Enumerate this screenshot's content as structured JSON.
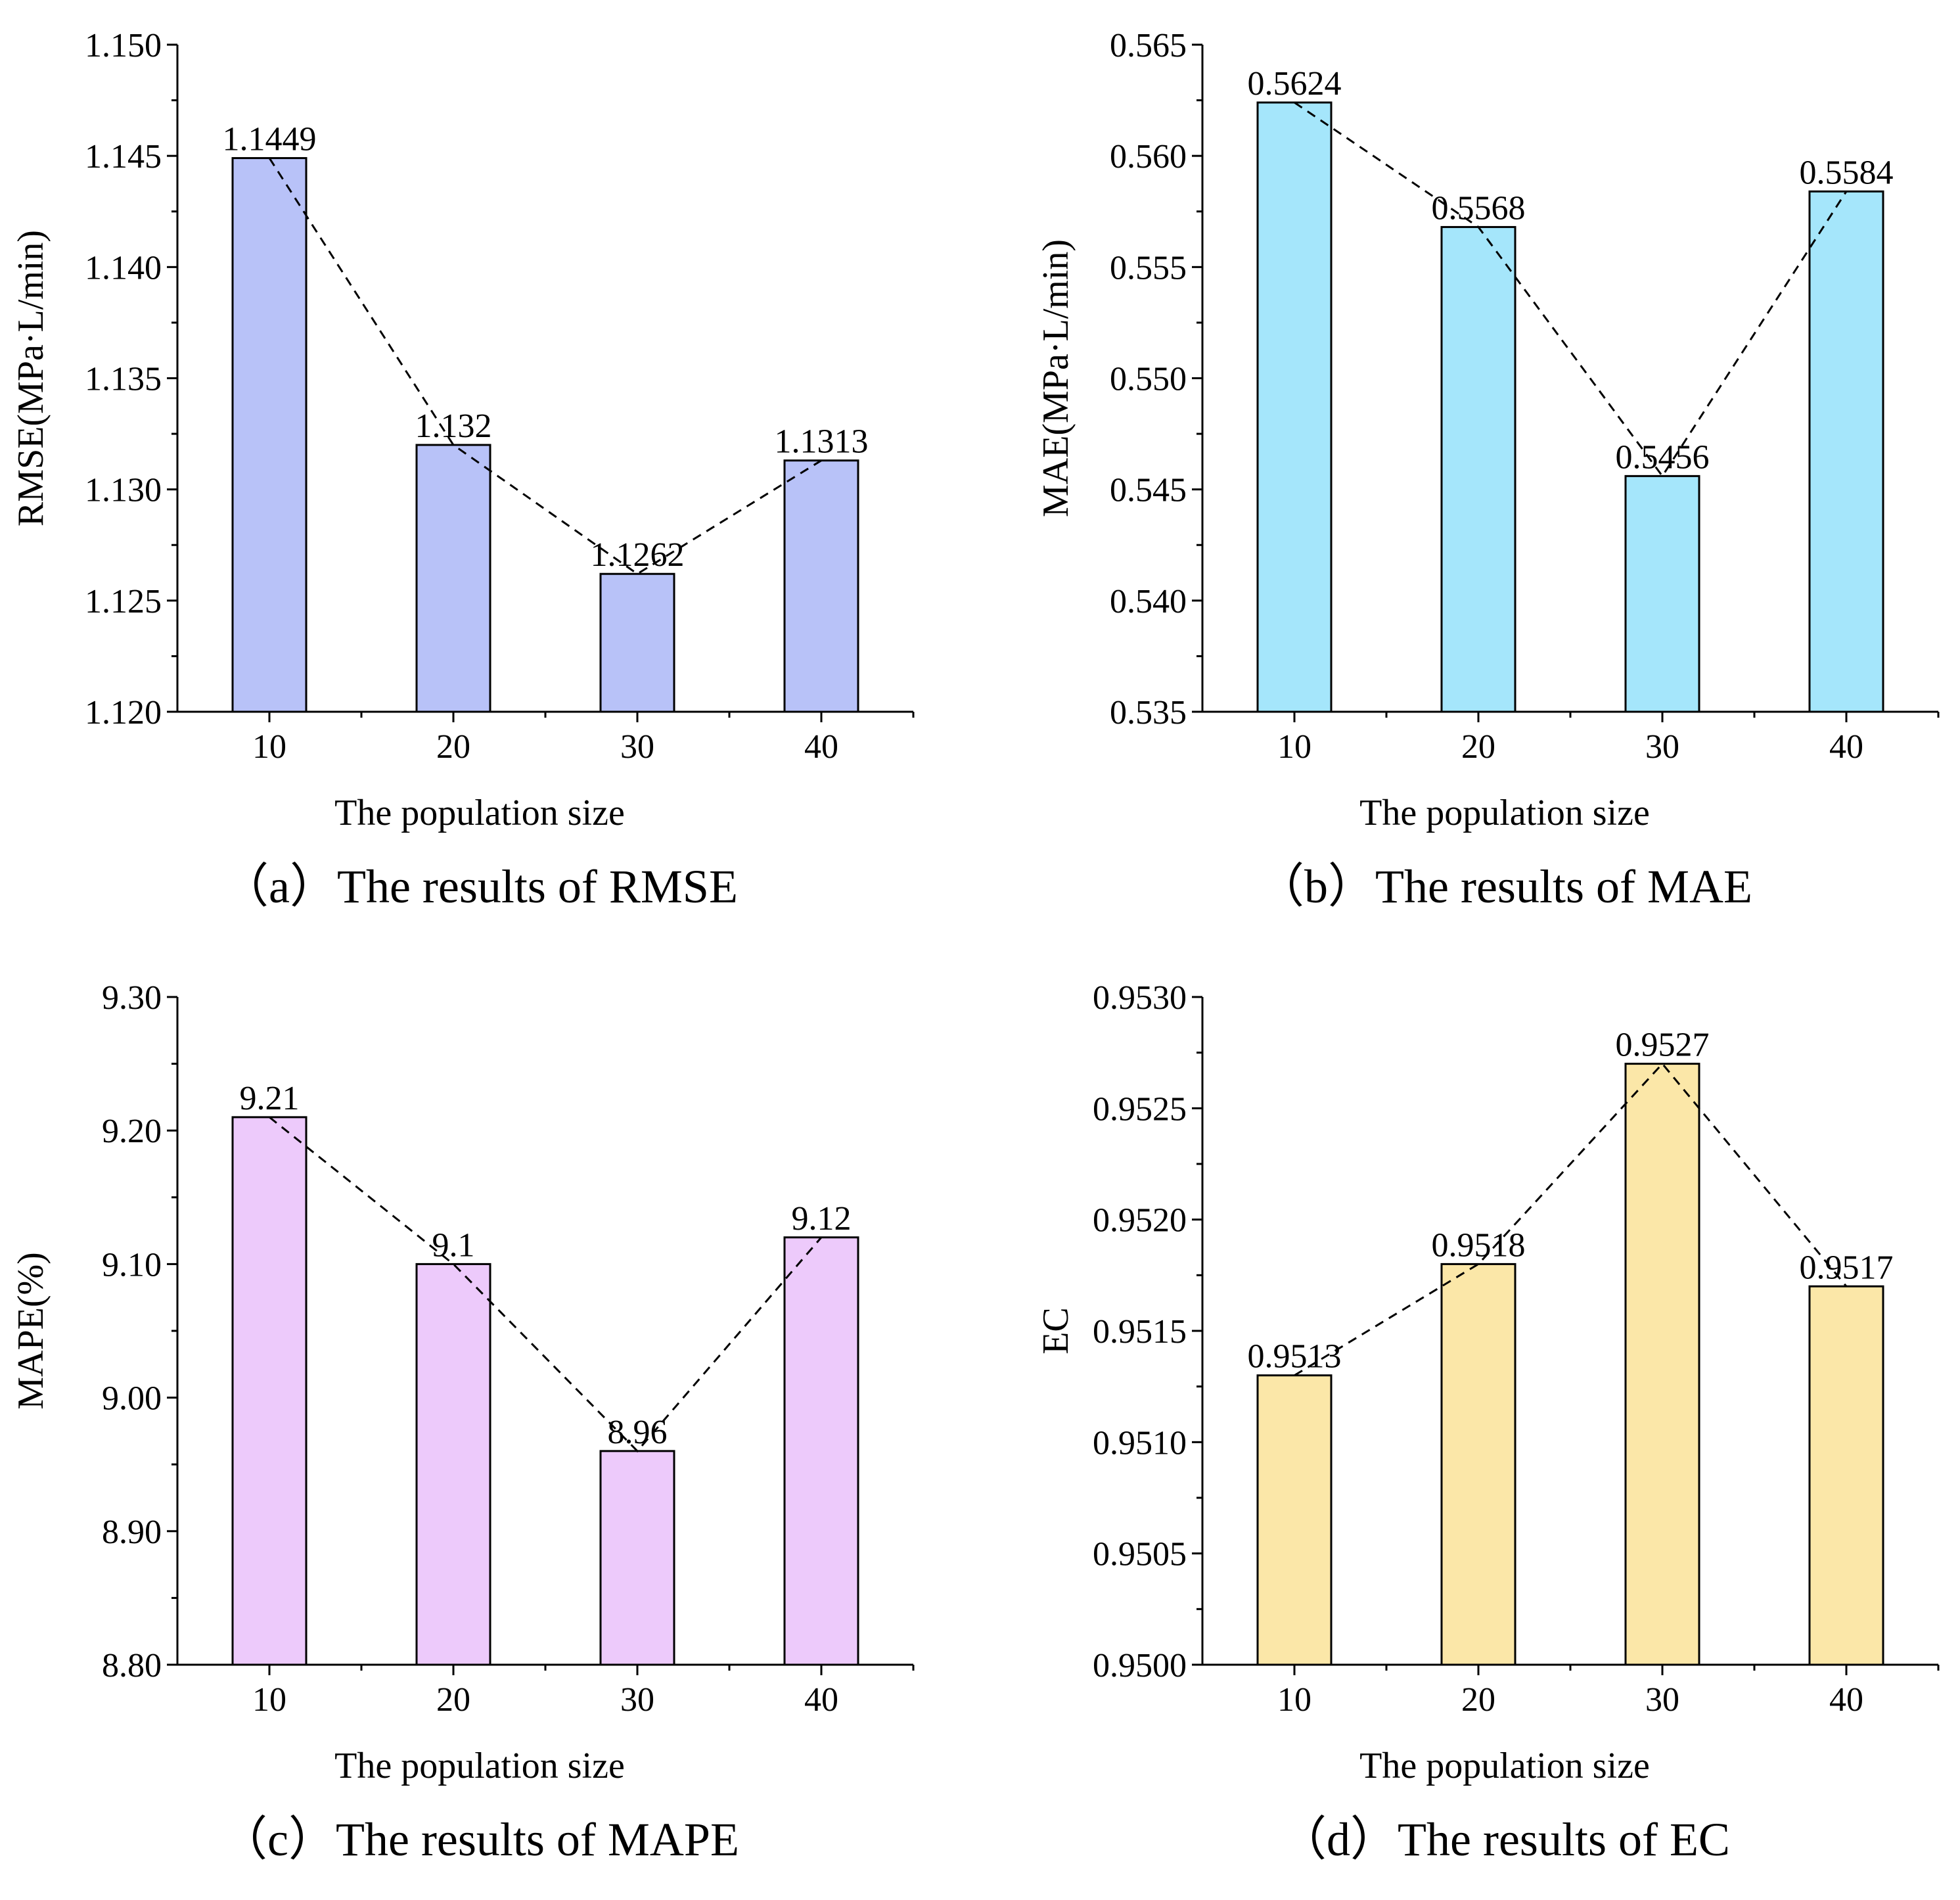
{
  "chart_data": [
    {
      "id": "a",
      "type": "bar",
      "categories": [
        "10",
        "20",
        "30",
        "40"
      ],
      "values": [
        1.1449,
        1.132,
        1.1262,
        1.1313
      ],
      "data_labels": [
        "1.1449",
        "1.132",
        "1.1262",
        "1.1313"
      ],
      "ylim": [
        1.12,
        1.15
      ],
      "yticks": [
        "1.120",
        "1.125",
        "1.130",
        "1.135",
        "1.140",
        "1.145",
        "1.150"
      ],
      "ylabel": "RMSE(MPa·L/min)",
      "xlabel": "The population size",
      "caption": "（a）The results of RMSE",
      "bar_color": "#b8c2f8",
      "trend_line": "dashed",
      "grid": false
    },
    {
      "id": "b",
      "type": "bar",
      "categories": [
        "10",
        "20",
        "30",
        "40"
      ],
      "values": [
        0.5624,
        0.5568,
        0.5456,
        0.5584
      ],
      "data_labels": [
        "0.5624",
        "0.5568",
        "0.5456",
        "0.5584"
      ],
      "ylim": [
        0.535,
        0.565
      ],
      "yticks": [
        "0.535",
        "0.540",
        "0.545",
        "0.550",
        "0.555",
        "0.560",
        "0.565"
      ],
      "ylabel": "MAE(MPa·L/min)",
      "xlabel": "The population size",
      "caption": "（b）The results of MAE",
      "bar_color": "#a5e6fb",
      "trend_line": "dashed",
      "grid": false
    },
    {
      "id": "c",
      "type": "bar",
      "categories": [
        "10",
        "20",
        "30",
        "40"
      ],
      "values": [
        9.21,
        9.1,
        8.96,
        9.12
      ],
      "data_labels": [
        "9.21",
        "9.1",
        "8.96",
        "9.12"
      ],
      "ylim": [
        8.8,
        9.3
      ],
      "yticks": [
        "8.80",
        "8.90",
        "9.00",
        "9.10",
        "9.20",
        "9.30"
      ],
      "ylabel": "MAPE(%)",
      "xlabel": "The population size",
      "caption": "（c）The results of MAPE",
      "bar_color": "#edcafb",
      "trend_line": "dashed",
      "grid": false
    },
    {
      "id": "d",
      "type": "bar",
      "categories": [
        "10",
        "20",
        "30",
        "40"
      ],
      "values": [
        0.9513,
        0.9518,
        0.9527,
        0.9517
      ],
      "data_labels": [
        "0.9513",
        "0.9518",
        "0.9527",
        "0.9517"
      ],
      "ylim": [
        0.95,
        0.953
      ],
      "yticks": [
        "0.9500",
        "0.9505",
        "0.9510",
        "0.9515",
        "0.9520",
        "0.9525",
        "0.9530"
      ],
      "ylabel": "EC",
      "xlabel": "The population size",
      "caption": "（d）The results of EC",
      "bar_color": "#fbe7a8",
      "trend_line": "dashed",
      "grid": false
    }
  ]
}
